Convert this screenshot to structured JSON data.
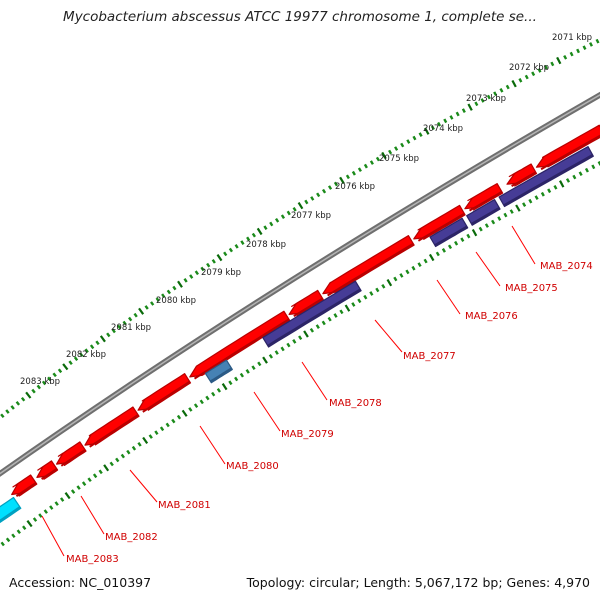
{
  "title": "Mycobacterium abscessus ATCC 19977 chromosome 1, complete se...",
  "accession": "Accession: NC_010397",
  "summary": "Topology: circular; Length: 5,067,172 bp; Genes: 4,970",
  "colors": {
    "backbone": "#7a7a7a",
    "gene": "#ff0000",
    "gene_shade": "#b80000",
    "cds": "#463c96",
    "cds_shade": "#2c2466",
    "rna": "#4682b4",
    "rna_shade": "#2b5a85",
    "feature": "#00e0ff",
    "tick_major": "#0a6a0a",
    "tick_minor": "#1a8a1a",
    "label": "#d00000",
    "leader": "#ff0000"
  },
  "scale_labels": [
    "2071 kbp",
    "2072 kbp",
    "2073 kbp",
    "2074 kbp",
    "2075 kbp",
    "2076 kbp",
    "2077 kbp",
    "2078 kbp",
    "2079 kbp",
    "2080 kbp",
    "2081 kbp",
    "2082 kbp",
    "2083 kbp"
  ],
  "gene_labels": [
    "MAB_2074",
    "MAB_2075",
    "MAB_2076",
    "MAB_2077",
    "MAB_2078",
    "MAB_2079",
    "MAB_2080",
    "MAB_2081",
    "MAB_2082",
    "MAB_2083"
  ]
}
